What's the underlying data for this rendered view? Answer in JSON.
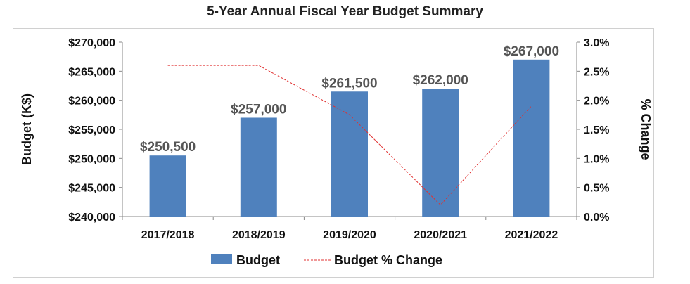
{
  "chart_data": {
    "type": "bar",
    "title": "5-Year Annual Fiscal Year Budget Summary",
    "categories": [
      "2017/2018",
      "2018/2019",
      "2019/2020",
      "2020/2021",
      "2021/2022"
    ],
    "series": [
      {
        "name": "Budget",
        "type": "bar",
        "axis": "left",
        "values": [
          250500,
          257000,
          261500,
          262000,
          267000
        ],
        "color": "#4f81bd"
      },
      {
        "name": "Budget % Change",
        "type": "line",
        "axis": "right",
        "style": "dashed",
        "values": [
          2.6,
          2.6,
          1.75,
          0.2,
          1.9
        ],
        "color": "#e03030"
      }
    ],
    "data_labels": [
      "$250,500",
      "$257,000",
      "$261,500",
      "$262,000",
      "$267,000"
    ],
    "ylabel": "Budget (K$)",
    "ylim": [
      240000,
      270000
    ],
    "y_ticks": [
      "$240,000",
      "$245,000",
      "$250,000",
      "$255,000",
      "$260,000",
      "$265,000",
      "$270,000"
    ],
    "y2label": "% Change",
    "y2lim": [
      0,
      3
    ],
    "y2_ticks": [
      "0.0%",
      "0.5%",
      "1.0%",
      "1.5%",
      "2.0%",
      "2.5%",
      "3.0%"
    ],
    "grid": false,
    "legend_position": "bottom"
  }
}
